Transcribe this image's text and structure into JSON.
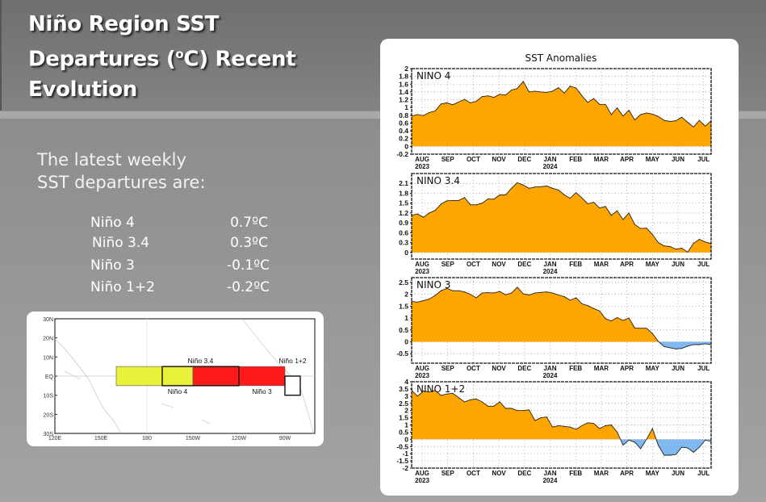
{
  "slide": {
    "title_line1": "Niño Region SST",
    "title_line2a": "Departures (",
    "title_sup": "o",
    "title_line2b": "C) Recent",
    "title_line3": "Evolution",
    "intro_line1": "The latest weekly",
    "intro_line2": "SST departures are:",
    "departures": [
      {
        "region": "Niño 4",
        "value": "0.7ºC"
      },
      {
        "region": "Niño 3.4",
        "value": "0.3ºC"
      },
      {
        "region": "Niño 3",
        "value": "-0.1ºC"
      },
      {
        "region": "Niño 1+2",
        "value": "-0.2ºC"
      }
    ]
  },
  "map": {
    "lat_labels": [
      "30N",
      "20N",
      "10N",
      "EQ",
      "10S",
      "20S",
      "30S"
    ],
    "lon_labels": [
      "120E",
      "150E",
      "180",
      "150W",
      "120W",
      "90W"
    ],
    "regions": [
      {
        "name": "Niño 4",
        "color": "#e8f23a"
      },
      {
        "name": "Niño 3.4",
        "color": "#e8f23a"
      },
      {
        "name": "Niño 3",
        "color": "#ff1a1a"
      },
      {
        "name": "Niño 1+2",
        "color": "#ffffff"
      }
    ]
  },
  "chart_title": "SST Anomalies",
  "colors": {
    "positive": "#ffa500",
    "negative": "#80b8f2",
    "line": "#222222"
  },
  "chart_data": [
    {
      "type": "area",
      "series_name": "NINO 4",
      "ylim": [
        -0.2,
        2
      ],
      "y_ticks": [
        "-0.2",
        "0",
        "0.2",
        "0.4",
        "0.6",
        "0.8",
        "1",
        "1.2",
        "1.4",
        "1.6",
        "1.8",
        "2"
      ],
      "x_ticks": [
        "AUG",
        "SEP",
        "OCT",
        "NOV",
        "DEC",
        "JAN",
        "FEB",
        "MAR",
        "APR",
        "MAY",
        "JUN",
        "JUL"
      ],
      "year_labels": [
        "2023",
        "2024"
      ],
      "grid": true,
      "values": [
        0.78,
        0.82,
        0.79,
        0.87,
        0.91,
        1.09,
        1.12,
        1.07,
        1.14,
        1.21,
        1.12,
        1.16,
        1.28,
        1.3,
        1.26,
        1.34,
        1.32,
        1.45,
        1.49,
        1.67,
        1.4,
        1.42,
        1.4,
        1.39,
        1.42,
        1.51,
        1.37,
        1.55,
        1.5,
        1.3,
        1.13,
        1.23,
        1.08,
        1.08,
        0.82,
        0.99,
        0.78,
        0.93,
        0.68,
        0.82,
        0.86,
        0.83,
        0.77,
        0.67,
        0.64,
        0.66,
        0.75,
        0.62,
        0.5,
        0.67,
        0.52,
        0.66
      ]
    },
    {
      "type": "area",
      "series_name": "NINO 3.4",
      "ylim": [
        -0.2,
        2.4
      ],
      "y_ticks": [
        "0",
        "0.3",
        "0.6",
        "0.9",
        "1.2",
        "1.5",
        "1.8",
        "2.1"
      ],
      "x_ticks": [
        "AUG",
        "SEP",
        "OCT",
        "NOV",
        "DEC",
        "JAN",
        "FEB",
        "MAR",
        "APR",
        "MAY",
        "JUN",
        "JUL"
      ],
      "year_labels": [
        "2023",
        "2024"
      ],
      "grid": true,
      "values": [
        1.13,
        1.17,
        1.07,
        1.2,
        1.28,
        1.47,
        1.57,
        1.58,
        1.58,
        1.67,
        1.45,
        1.45,
        1.5,
        1.63,
        1.62,
        1.75,
        1.75,
        1.95,
        2.12,
        2.05,
        1.95,
        1.99,
        2.0,
        2.02,
        1.95,
        1.9,
        1.75,
        1.65,
        1.82,
        1.66,
        1.48,
        1.53,
        1.35,
        1.4,
        1.13,
        1.27,
        1.0,
        1.2,
        0.85,
        0.73,
        0.74,
        0.55,
        0.3,
        0.2,
        0.18,
        0.1,
        0.13,
        0.01,
        0.28,
        0.4,
        0.32,
        0.27
      ]
    },
    {
      "type": "area",
      "series_name": "NINO 3",
      "ylim": [
        -0.9,
        2.7
      ],
      "y_ticks": [
        "-0.5",
        "0",
        "0.5",
        "1",
        "1.5",
        "2",
        "2.5"
      ],
      "x_ticks": [
        "AUG",
        "SEP",
        "OCT",
        "NOV",
        "DEC",
        "JAN",
        "FEB",
        "MAR",
        "APR",
        "MAY",
        "JUN",
        "JUL"
      ],
      "year_labels": [
        "2023",
        "2024"
      ],
      "grid": true,
      "values": [
        1.7,
        1.67,
        1.73,
        1.8,
        1.95,
        2.15,
        2.25,
        2.15,
        2.15,
        2.1,
        2.0,
        1.85,
        2.05,
        2.07,
        2.05,
        2.12,
        1.98,
        2.05,
        2.3,
        2.02,
        1.97,
        2.05,
        2.08,
        2.1,
        2.05,
        1.97,
        1.9,
        1.75,
        1.85,
        1.6,
        1.52,
        1.4,
        1.3,
        0.97,
        0.88,
        1.02,
        0.9,
        1.0,
        0.58,
        0.57,
        0.57,
        0.35,
        0.02,
        -0.2,
        -0.25,
        -0.3,
        -0.28,
        -0.18,
        -0.12,
        -0.12,
        -0.08,
        -0.12
      ]
    },
    {
      "type": "area",
      "series_name": "NINO 1+2",
      "ylim": [
        -2,
        4
      ],
      "y_ticks": [
        "-2",
        "-1.5",
        "-1",
        "-0.5",
        "0",
        "0.5",
        "1",
        "1.5",
        "2",
        "2.5",
        "3",
        "3.5",
        "4"
      ],
      "x_ticks": [
        "AUG",
        "SEP",
        "OCT",
        "NOV",
        "DEC",
        "JAN",
        "FEB",
        "MAR",
        "APR",
        "MAY",
        "JUN",
        "JUL"
      ],
      "year_labels": [
        "2023",
        "2024"
      ],
      "grid": true,
      "values": [
        3.4,
        3.0,
        3.35,
        3.3,
        3.4,
        3.05,
        3.15,
        3.2,
        2.9,
        2.6,
        2.75,
        2.8,
        2.6,
        2.3,
        2.3,
        2.6,
        2.15,
        2.15,
        2.0,
        2.0,
        2.05,
        1.3,
        1.5,
        1.55,
        0.85,
        0.95,
        0.9,
        0.85,
        0.7,
        0.95,
        1.15,
        1.1,
        0.75,
        0.95,
        1.0,
        0.5,
        -0.4,
        -0.05,
        -0.2,
        -0.65,
        0.0,
        0.75,
        -0.4,
        -1.1,
        -1.1,
        -1.05,
        -0.55,
        -0.6,
        -0.9,
        -0.55,
        -0.05,
        -0.15
      ]
    }
  ]
}
